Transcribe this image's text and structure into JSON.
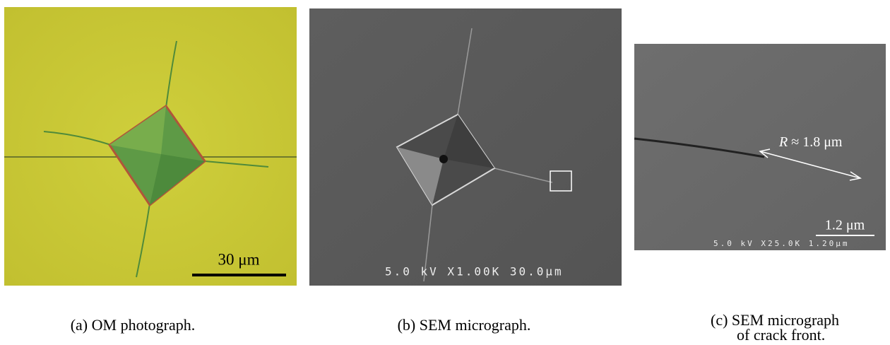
{
  "panels": [
    {
      "scale_bar": "30 μm",
      "caption": "(a) OM photograph."
    },
    {
      "info_bar": "5.0 kV X1.00K 30.0μm",
      "caption": "(b) SEM micrograph."
    },
    {
      "annotation_symbol": "R",
      "annotation_text": "≈ 1.8 μm",
      "scale_bar": "1.2 μm",
      "info_bar": "5.0 kV X25.0K 1.20μm",
      "caption_lines": [
        "(c) SEM micrograph",
        "of crack front."
      ]
    }
  ]
}
